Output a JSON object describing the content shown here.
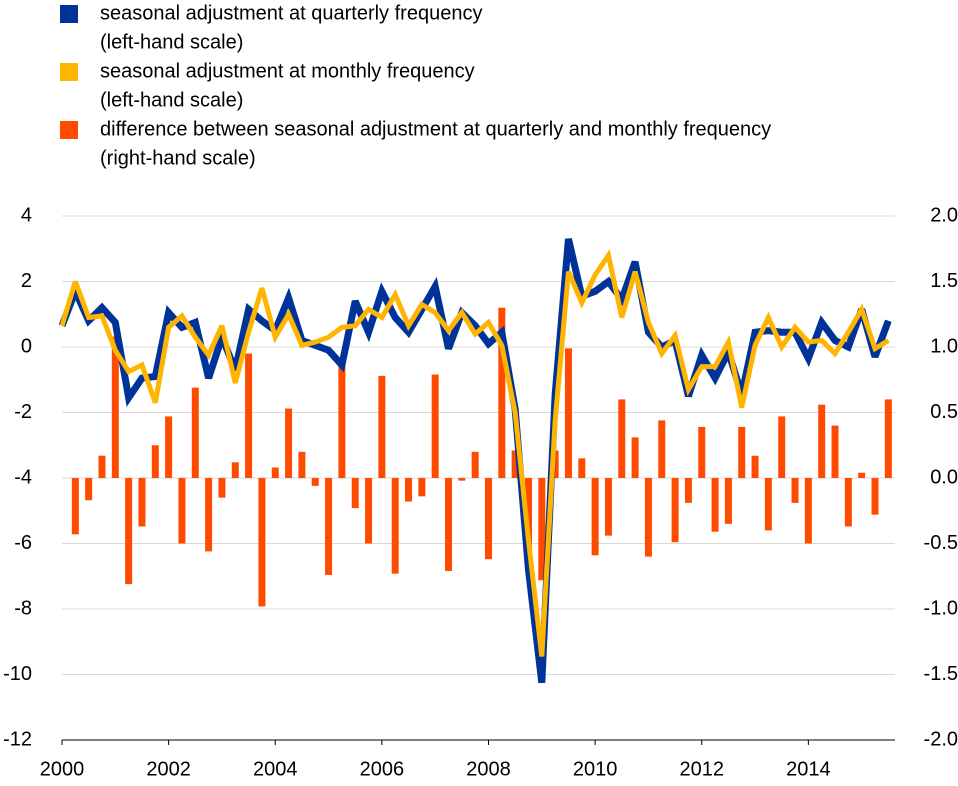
{
  "chart_data": {
    "type": "line-bar",
    "x": [
      2000,
      2000.25,
      2000.5,
      2000.75,
      2001,
      2001.25,
      2001.5,
      2001.75,
      2002,
      2002.25,
      2002.5,
      2002.75,
      2003,
      2003.25,
      2003.5,
      2003.75,
      2004,
      2004.25,
      2004.5,
      2004.75,
      2005,
      2005.25,
      2005.5,
      2005.75,
      2006,
      2006.25,
      2006.5,
      2006.75,
      2007,
      2007.25,
      2007.5,
      2007.75,
      2008,
      2008.25,
      2008.5,
      2008.75,
      2009,
      2009.25,
      2009.5,
      2009.75,
      2010,
      2010.25,
      2010.5,
      2010.75,
      2011,
      2011.25,
      2011.5,
      2011.75,
      2012,
      2012.25,
      2012.5,
      2012.75,
      2013,
      2013.25,
      2013.5,
      2013.75,
      2014,
      2014.25,
      2014.5,
      2014.75,
      2015,
      2015.25,
      2015.5
    ],
    "series": [
      {
        "name": "difference between seasonal adjustment at quarterly and monthly frequency",
        "legend_note": "(right-hand scale)",
        "color": "#ff4b00",
        "mark": "bar",
        "axis": "y2",
        "values": [
          null,
          -0.43,
          -0.17,
          0.17,
          1.08,
          -0.81,
          -0.37,
          0.25,
          0.47,
          -0.5,
          0.69,
          -0.56,
          -0.15,
          0.12,
          0.95,
          -0.98,
          0.08,
          0.53,
          0.2,
          -0.06,
          -0.74,
          0.89,
          -0.23,
          -0.5,
          0.78,
          -0.73,
          -0.18,
          -0.14,
          0.79,
          -0.71,
          -0.02,
          0.2,
          -0.62,
          1.3,
          0.21,
          -0.68,
          -0.78,
          0.21,
          0.99,
          0.15,
          -0.59,
          -0.44,
          0.6,
          0.31,
          -0.6,
          0.44,
          -0.49,
          -0.19,
          0.39,
          -0.41,
          -0.35,
          0.39,
          0.17,
          -0.4,
          0.47,
          -0.19,
          -0.5,
          0.56,
          0.4,
          -0.37,
          0.04,
          -0.28,
          0.6
        ]
      },
      {
        "name": "seasonal adjustment at quarterly frequency",
        "legend_note": "(left-hand scale)",
        "color": "#003399",
        "mark": "line",
        "values": [
          0.65,
          1.7,
          0.8,
          1.2,
          0.75,
          -1.55,
          -0.95,
          -0.9,
          1.05,
          0.6,
          0.75,
          -0.95,
          0.3,
          -0.7,
          1.15,
          0.8,
          0.5,
          1.5,
          0.2,
          0.05,
          -0.1,
          -0.55,
          1.4,
          0.45,
          1.7,
          0.9,
          0.45,
          1.15,
          1.85,
          -0.05,
          1.05,
          0.65,
          0.1,
          0.45,
          -1.9,
          -6.8,
          -10.25,
          -1.45,
          3.3,
          1.55,
          1.7,
          2.0,
          1.45,
          2.6,
          0.45,
          0.0,
          0.2,
          -1.5,
          -0.25,
          -0.95,
          -0.15,
          -1.45,
          0.45,
          0.5,
          0.45,
          0.45,
          -0.35,
          0.75,
          0.2,
          0.0,
          1.15,
          -0.3,
          0.8
        ]
      },
      {
        "name": "seasonal adjustment at monthly frequency",
        "legend_note": "(left-hand scale)",
        "color": "#ffb400",
        "mark": "line",
        "values": [
          0.65,
          2.0,
          0.9,
          0.95,
          -0.1,
          -0.75,
          -0.55,
          -1.7,
          0.6,
          0.95,
          0.3,
          -0.25,
          0.65,
          -1.1,
          0.45,
          1.8,
          0.3,
          1.0,
          0.05,
          0.15,
          0.3,
          0.6,
          0.65,
          1.15,
          0.9,
          1.6,
          0.65,
          1.3,
          1.05,
          0.5,
          1.05,
          0.4,
          0.75,
          0.05,
          -2.0,
          -5.9,
          -9.45,
          -2.25,
          2.3,
          1.35,
          2.2,
          2.8,
          0.9,
          2.3,
          0.75,
          -0.2,
          0.35,
          -1.3,
          -0.6,
          -0.6,
          0.15,
          -1.85,
          0.05,
          0.9,
          0.0,
          0.6,
          0.15,
          0.2,
          -0.2,
          0.45,
          1.15,
          -0.05,
          0.2
        ]
      }
    ],
    "legend_order": [
      1,
      2,
      0
    ],
    "xlim": [
      2000,
      2015.625
    ],
    "xticks": [
      2000,
      2002,
      2004,
      2006,
      2008,
      2010,
      2012,
      2014
    ],
    "ylim": [
      -12,
      4
    ],
    "yticks": [
      -12,
      -10,
      -8,
      -6,
      -4,
      -2,
      0,
      2,
      4
    ],
    "y2lim": [
      -2,
      2
    ],
    "y2ticks": [
      {
        "value": -2,
        "label": "-2.0"
      },
      -1.5,
      {
        "value": -1,
        "label": "-1.0"
      },
      -0.5,
      {
        "value": 0,
        "label": "0.0"
      },
      0.5,
      {
        "value": 1,
        "label": "1.0"
      },
      1.5,
      {
        "value": 2,
        "label": "2.0"
      }
    ],
    "grid": true
  }
}
